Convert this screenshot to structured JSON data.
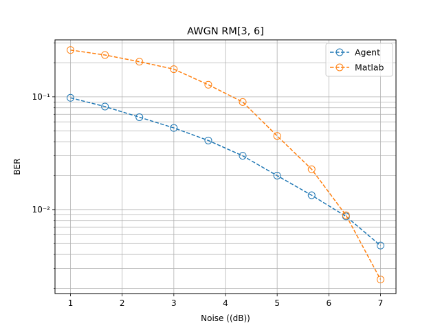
{
  "chart_data": {
    "type": "line",
    "title": "AWGN RM[3, 6]",
    "xlabel": "Noise ((dB))",
    "ylabel": "BER",
    "xlim": [
      0.7,
      7.3
    ],
    "ylim": [
      0.0018,
      0.32
    ],
    "yscale": "log",
    "grid": true,
    "grid_minor_y": true,
    "legend_position": "top-right",
    "x": [
      1.0,
      1.667,
      2.333,
      3.0,
      3.667,
      4.333,
      5.0,
      5.667,
      6.333,
      7.0
    ],
    "xticks": [
      1,
      2,
      3,
      4,
      5,
      6,
      7
    ],
    "xtick_labels": [
      "1",
      "2",
      "3",
      "4",
      "5",
      "6",
      "7"
    ],
    "yticks": [
      0.1,
      0.01
    ],
    "ytick_labels": [
      "10⁻¹",
      "10⁻²"
    ],
    "series": [
      {
        "name": "Agent",
        "color": "#1f77b4",
        "linestyle": "dashed",
        "marker": "open-circle",
        "values": [
          0.098,
          0.082,
          0.066,
          0.053,
          0.041,
          0.03,
          0.02,
          0.0134,
          0.0087,
          0.0048
        ]
      },
      {
        "name": "Matlab",
        "color": "#ff7f0e",
        "linestyle": "dashed",
        "marker": "open-circle",
        "values": [
          0.26,
          0.235,
          0.205,
          0.176,
          0.128,
          0.09,
          0.045,
          0.0228,
          0.0089,
          0.0024
        ]
      }
    ]
  }
}
